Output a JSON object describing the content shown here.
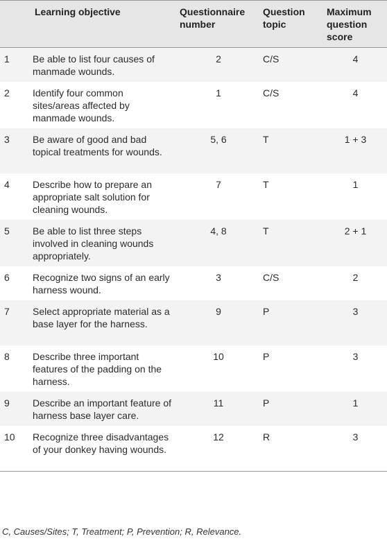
{
  "table": {
    "headers": {
      "number": "",
      "objective": "Learning objective",
      "questionnaire": "Questionnaire number",
      "topic": "Question topic",
      "max_score": "Maximum question score"
    },
    "rows": [
      {
        "num": "1",
        "objective": "Be able to list four causes of manmade wounds.",
        "questionnaire": "2",
        "topic": "C/S",
        "max_score": "4"
      },
      {
        "num": "2",
        "objective": "Identify four common sites/areas affected by manmade wounds.",
        "questionnaire": "1",
        "topic": "C/S",
        "max_score": "4"
      },
      {
        "num": "3",
        "objective": "Be aware of good and bad topical treatments for wounds.",
        "questionnaire": "5, 6",
        "topic": "T",
        "max_score": "1 + 3"
      },
      {
        "num": "4",
        "objective": "Describe how to prepare an appropriate salt solution for cleaning wounds.",
        "questionnaire": "7",
        "topic": "T",
        "max_score": "1"
      },
      {
        "num": "5",
        "objective": "Be able to list three steps involved in cleaning wounds appropriately.",
        "questionnaire": "4, 8",
        "topic": "T",
        "max_score": "2 + 1"
      },
      {
        "num": "6",
        "objective": "Recognize two signs of an early harness wound.",
        "questionnaire": "3",
        "topic": "C/S",
        "max_score": "2"
      },
      {
        "num": "7",
        "objective": "Select appropriate material as a base layer for the harness.",
        "questionnaire": "9",
        "topic": "P",
        "max_score": "3"
      },
      {
        "num": "8",
        "objective": "Describe three important features of the padding on the harness.",
        "questionnaire": "10",
        "topic": "P",
        "max_score": "3"
      },
      {
        "num": "9",
        "objective": "Describe an important feature of harness base layer care.",
        "questionnaire": "11",
        "topic": "P",
        "max_score": "1"
      },
      {
        "num": "10",
        "objective": "Recognize three disadvantages of your donkey having wounds.",
        "questionnaire": "12",
        "topic": "R",
        "max_score": "3"
      }
    ]
  },
  "footnote": "C, Causes/Sites; T, Treatment; P, Prevention; R, Relevance."
}
